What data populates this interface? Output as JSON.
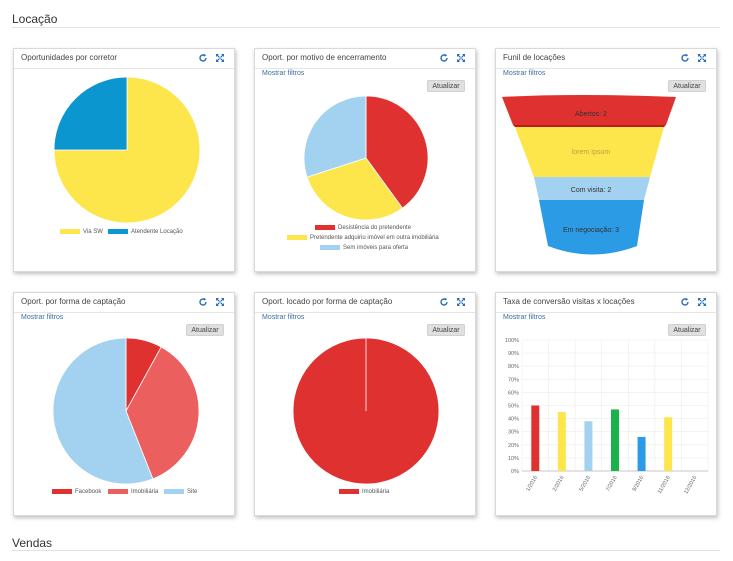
{
  "sections": {
    "locacao": "Locação",
    "vendas": "Vendas"
  },
  "common": {
    "filters_link": "Mostrar filtros",
    "update_button": "Atualizar"
  },
  "icons": {
    "refresh": "refresh-icon",
    "expand": "expand-icon",
    "icon_color": "#2a6fb8"
  },
  "cards": {
    "corretor": {
      "title": "Oportunidades por corretor",
      "legend": [
        "Via SW",
        "Atendente Locação"
      ]
    },
    "encerramento": {
      "title": "Oport. por motivo de encerramento",
      "legend": [
        "Desistência do pretendente",
        "Pretendente adquiriu imóvel em outra imobiliária",
        "Sem imóveis para oferta"
      ]
    },
    "funil": {
      "title": "Funil de locações",
      "stages": [
        "Abertos: 2",
        "lorem Ipsum",
        "Com visita: 2",
        "Em negociação: 3"
      ]
    },
    "captacao": {
      "title": "Oport. por forma de captação",
      "legend": [
        "Facebook",
        "Imobiliária",
        "Site"
      ]
    },
    "locado": {
      "title": "Oport. locado por forma de captação",
      "legend": [
        "Imobiliária"
      ]
    },
    "conversao": {
      "title": "Taxa de conversão visitas x locações"
    }
  },
  "chart_data": [
    {
      "type": "pie",
      "chart": "Oportunidades por corretor",
      "labels": [
        "Via SW",
        "Atendente Locação"
      ],
      "values": [
        75,
        25
      ],
      "colors": [
        "#fde64b",
        "#0b96cf"
      ]
    },
    {
      "type": "pie",
      "chart": "Oport. por motivo de encerramento",
      "labels": [
        "Desistência do pretendente",
        "Pretendente adquiriu imóvel em outra imobiliária",
        "Sem imóveis para oferta"
      ],
      "values": [
        40,
        30,
        30
      ],
      "colors": [
        "#e03131",
        "#fde64b",
        "#a3d2f0"
      ]
    },
    {
      "type": "bar",
      "chart": "Funil de locações",
      "categories": [
        "Abertos",
        "lorem Ipsum",
        "Com visita",
        "Em negociação"
      ],
      "values": [
        2,
        null,
        2,
        3
      ],
      "colors": [
        "#e03131",
        "#fde64b",
        "#a3d2f0",
        "#2c9be6"
      ]
    },
    {
      "type": "pie",
      "chart": "Oport. por forma de captação",
      "labels": [
        "Facebook",
        "Imobiliária",
        "Site"
      ],
      "values": [
        8,
        36,
        56
      ],
      "colors": [
        "#e03131",
        "#ec5f5f",
        "#a3d2f0"
      ]
    },
    {
      "type": "pie",
      "chart": "Oport. locado por forma de captação",
      "labels": [
        "Imobiliária"
      ],
      "values": [
        100
      ],
      "colors": [
        "#e03131"
      ]
    },
    {
      "type": "bar",
      "chart": "Taxa de conversão visitas x locações",
      "categories": [
        "1/2016",
        "2/2016",
        "5/2016",
        "7/2016",
        "9/2016",
        "11/2016",
        "12/2016"
      ],
      "values": [
        50,
        45,
        38,
        47,
        26,
        41,
        0
      ],
      "colors": [
        "#e03131",
        "#fde64b",
        "#a3d2f0",
        "#19b34a",
        "#2c9be6",
        "#fde64b",
        "#cccccc"
      ],
      "yticks": [
        "0%",
        "10%",
        "20%",
        "30%",
        "40%",
        "50%",
        "60%",
        "70%",
        "80%",
        "90%",
        "100%"
      ],
      "ylim": [
        0,
        100
      ],
      "grid": true
    }
  ]
}
